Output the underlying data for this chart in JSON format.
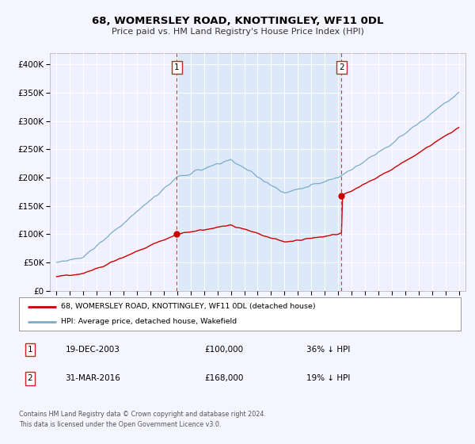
{
  "title": "68, WOMERSLEY ROAD, KNOTTINGLEY, WF11 0DL",
  "subtitle": "Price paid vs. HM Land Registry's House Price Index (HPI)",
  "background_color": "#f5f5ff",
  "plot_bg_color": "#f0f0ff",
  "shade_color": "#dde8f8",
  "grid_color": "#ffffff",
  "sale1": {
    "date": 2003.97,
    "price": 100000,
    "label": "1"
  },
  "sale2": {
    "date": 2016.25,
    "price": 168000,
    "label": "2"
  },
  "legend_line1": "68, WOMERSLEY ROAD, KNOTTINGLEY, WF11 0DL (detached house)",
  "legend_line2": "HPI: Average price, detached house, Wakefield",
  "table_row1": [
    "1",
    "19-DEC-2003",
    "£100,000",
    "36% ↓ HPI"
  ],
  "table_row2": [
    "2",
    "31-MAR-2016",
    "£168,000",
    "19% ↓ HPI"
  ],
  "footer1": "Contains HM Land Registry data © Crown copyright and database right 2024.",
  "footer2": "This data is licensed under the Open Government Licence v3.0.",
  "ylim": [
    0,
    420000
  ],
  "xlim_start": 1994.5,
  "xlim_end": 2025.5,
  "sale_color": "#cc0000",
  "hpi_color": "#7aadcc",
  "vline_color": "#dd3333",
  "marker_color": "#cc0000"
}
